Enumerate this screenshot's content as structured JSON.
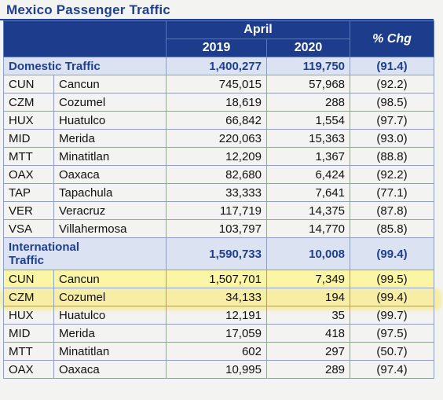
{
  "title": "Mexico Passenger Traffic",
  "header": {
    "period": "April",
    "year1": "2019",
    "year2": "2020",
    "pct": "% Chg"
  },
  "domestic": {
    "label": "Domestic Traffic",
    "v2019": "1,400,277",
    "v2020": "119,750",
    "pct": "(91.4)",
    "rows": [
      {
        "code": "CUN",
        "name": "Cancun",
        "v2019": "745,015",
        "v2020": "57,968",
        "pct": "(92.2)"
      },
      {
        "code": "CZM",
        "name": "Cozumel",
        "v2019": "18,619",
        "v2020": "288",
        "pct": "(98.5)"
      },
      {
        "code": "HUX",
        "name": "Huatulco",
        "v2019": "66,842",
        "v2020": "1,554",
        "pct": "(97.7)"
      },
      {
        "code": "MID",
        "name": "Merida",
        "v2019": "220,063",
        "v2020": "15,363",
        "pct": "(93.0)"
      },
      {
        "code": "MTT",
        "name": "Minatitlan",
        "v2019": "12,209",
        "v2020": "1,367",
        "pct": "(88.8)"
      },
      {
        "code": "OAX",
        "name": "Oaxaca",
        "v2019": "82,680",
        "v2020": "6,424",
        "pct": "(92.2)"
      },
      {
        "code": "TAP",
        "name": "Tapachula",
        "v2019": "33,333",
        "v2020": "7,641",
        "pct": "(77.1)"
      },
      {
        "code": "VER",
        "name": "Veracruz",
        "v2019": "117,719",
        "v2020": "14,375",
        "pct": "(87.8)"
      },
      {
        "code": "VSA",
        "name": "Villahermosa",
        "v2019": "103,797",
        "v2020": "14,770",
        "pct": "(85.8)"
      }
    ]
  },
  "international": {
    "label1": "International",
    "label2": "Traffic",
    "v2019": "1,590,733",
    "v2020": "10,008",
    "pct": "(99.4)",
    "rows": [
      {
        "code": "CUN",
        "name": "Cancun",
        "v2019": "1,507,701",
        "v2020": "7,349",
        "pct": "(99.5)"
      },
      {
        "code": "CZM",
        "name": "Cozumel",
        "v2019": "34,133",
        "v2020": "194",
        "pct": "(99.4)"
      },
      {
        "code": "HUX",
        "name": "Huatulco",
        "v2019": "12,191",
        "v2020": "35",
        "pct": "(99.7)"
      },
      {
        "code": "MID",
        "name": "Merida",
        "v2019": "17,059",
        "v2020": "418",
        "pct": "(97.5)"
      },
      {
        "code": "MTT",
        "name": "Minatitlan",
        "v2019": "602",
        "v2020": "297",
        "pct": "(50.7)"
      },
      {
        "code": "OAX",
        "name": "Oaxaca",
        "v2019": "10,995",
        "v2020": "289",
        "pct": "(97.4)"
      }
    ]
  },
  "colors": {
    "header_bg": "#1d3c8c",
    "section_bg": "#dbe3f2",
    "highlight": "#fbf5a6",
    "title": "#1f3f8f"
  }
}
